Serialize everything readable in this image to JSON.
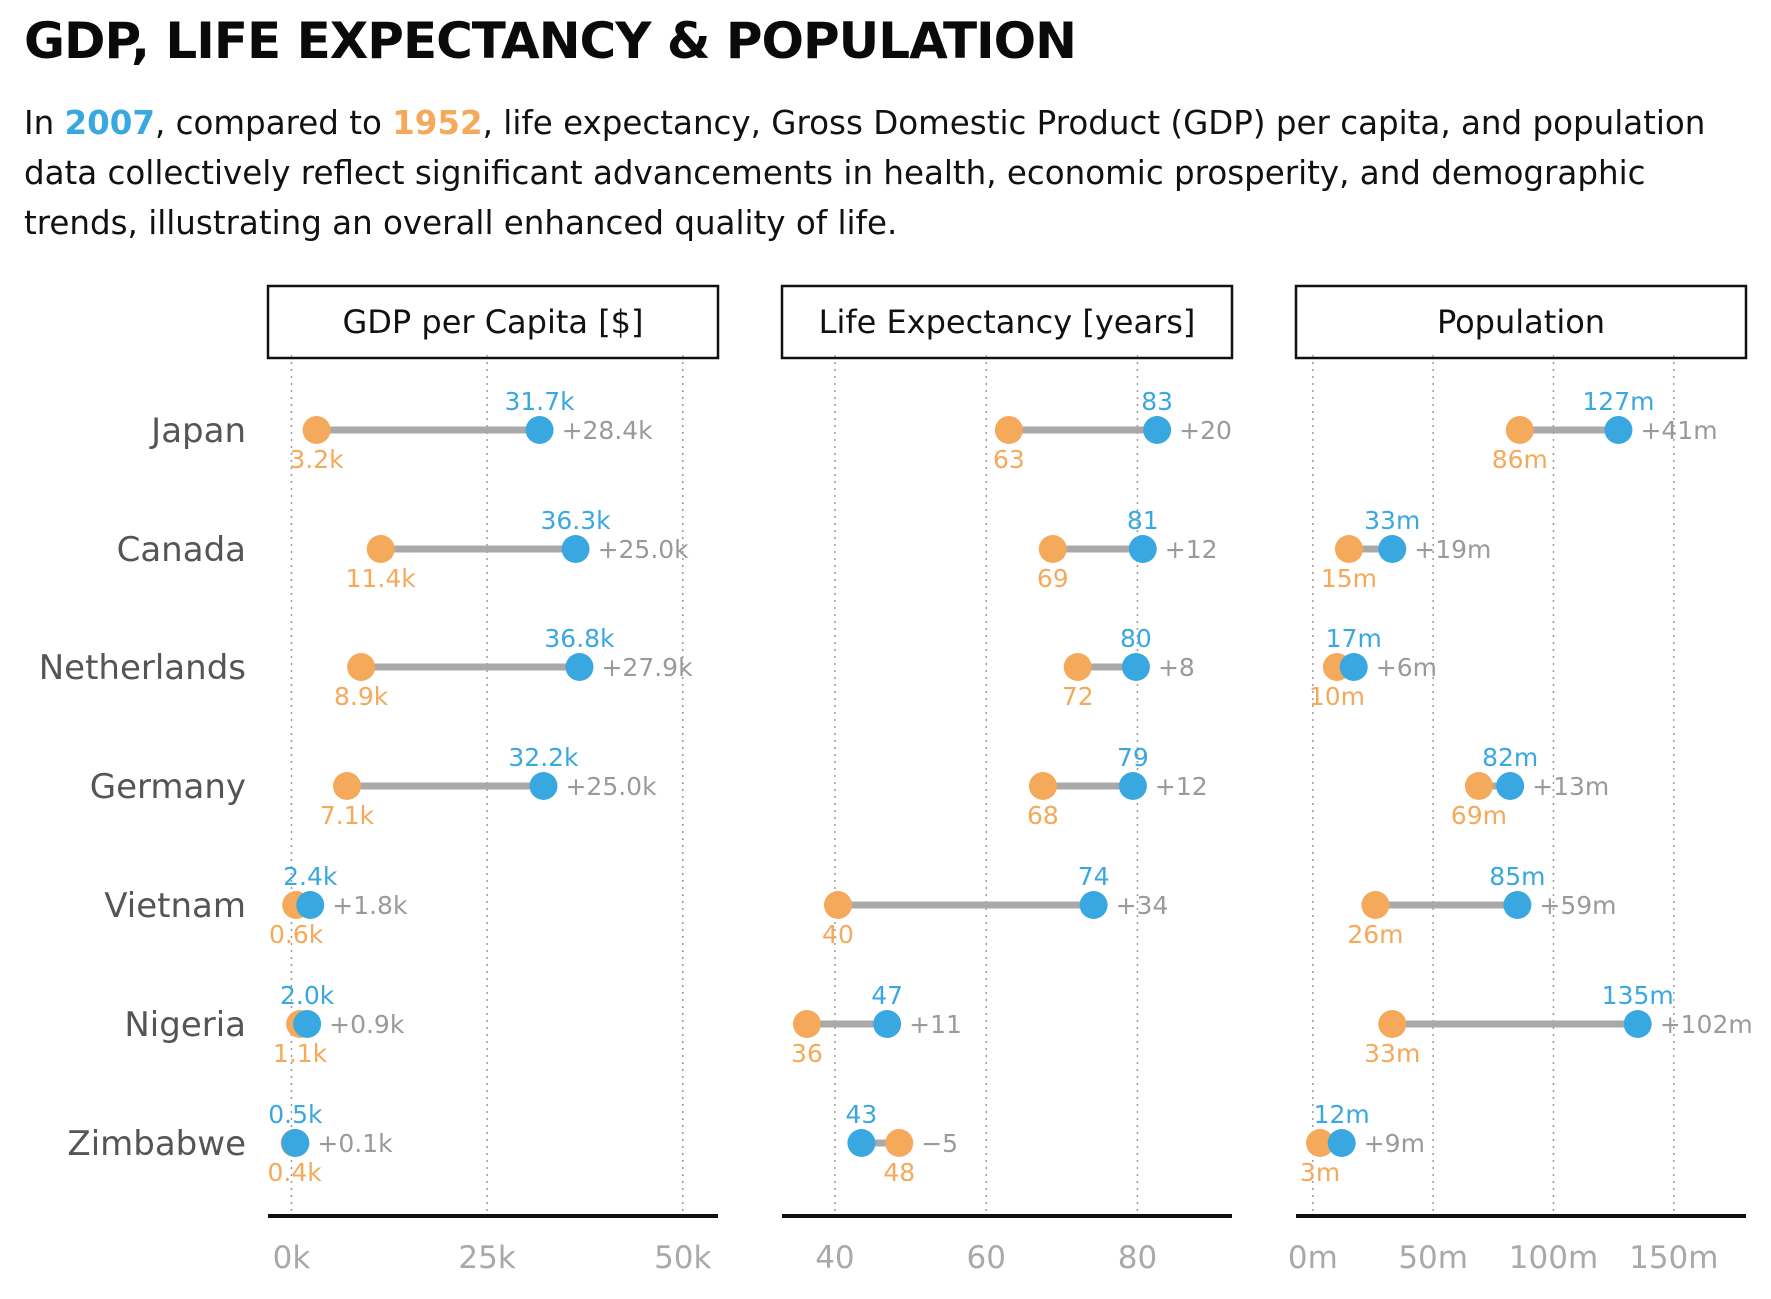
{
  "title": "GDP, LIFE EXPECTANCY & POPULATION",
  "subtitle": {
    "prefix": "In ",
    "year_new": "2007",
    "middle": ", compared to ",
    "year_old": "1952",
    "suffix": ", life expectancy, Gross Domestic Product (GDP) per capita, and population data collectively reflect significant advancements in health, economic prosperity, and demographic trends, illustrating an overall enhanced quality of life."
  },
  "colors": {
    "year_new": "#3aa8e0",
    "year_old": "#f5a95a",
    "connector": "#a9a9a9",
    "diff": "#9a9a9a",
    "country": "#555555",
    "tick": "#a9a9a9"
  },
  "chart_data": [
    {
      "type": "dumbbell",
      "title": "GDP per Capita [$]",
      "xlim": [
        -3000,
        54500
      ],
      "ticks": [
        0,
        25000,
        50000
      ],
      "tick_labels": [
        "0k",
        "25k",
        "50k"
      ],
      "categories": [
        "Japan",
        "Canada",
        "Netherlands",
        "Germany",
        "Vietnam",
        "Nigeria",
        "Zimbabwe"
      ],
      "series": [
        {
          "name": "1952",
          "values": [
            3200,
            11400,
            8900,
            7100,
            600,
            1100,
            400
          ],
          "labels": [
            "3.2k",
            "11.4k",
            "8.9k",
            "7.1k",
            "0.6k",
            "1.1k",
            "0.4k"
          ]
        },
        {
          "name": "2007",
          "values": [
            31700,
            36300,
            36800,
            32200,
            2400,
            2000,
            500
          ],
          "labels": [
            "31.7k",
            "36.3k",
            "36.8k",
            "32.2k",
            "2.4k",
            "2.0k",
            "0.5k"
          ]
        }
      ],
      "differences": [
        "+28.4k",
        "+25.0k",
        "+27.9k",
        "+25.0k",
        "+1.8k",
        "+0.9k",
        "+0.1k"
      ]
    },
    {
      "type": "dumbbell",
      "title": "Life Expectancy [years]",
      "xlim": [
        33,
        92.5
      ],
      "ticks": [
        40,
        60,
        80
      ],
      "tick_labels": [
        "40",
        "60",
        "80"
      ],
      "categories": [
        "Japan",
        "Canada",
        "Netherlands",
        "Germany",
        "Vietnam",
        "Nigeria",
        "Zimbabwe"
      ],
      "series": [
        {
          "name": "1952",
          "values": [
            63.0,
            68.8,
            72.1,
            67.5,
            40.4,
            36.3,
            48.5
          ],
          "labels": [
            "63",
            "69",
            "72",
            "68",
            "40",
            "36",
            "48"
          ]
        },
        {
          "name": "2007",
          "values": [
            82.6,
            80.7,
            79.8,
            79.4,
            74.2,
            46.9,
            43.5
          ],
          "labels": [
            "83",
            "81",
            "80",
            "79",
            "74",
            "47",
            "43"
          ]
        }
      ],
      "differences": [
        "+20",
        "+12",
        "+8",
        "+12",
        "+34",
        "+11",
        "−5"
      ]
    },
    {
      "type": "dumbbell",
      "title": "Population",
      "xlim": [
        -7,
        180
      ],
      "ticks": [
        0,
        50,
        100,
        150
      ],
      "tick_labels": [
        "0m",
        "50m",
        "100m",
        "150m"
      ],
      "categories": [
        "Japan",
        "Canada",
        "Netherlands",
        "Germany",
        "Vietnam",
        "Nigeria",
        "Zimbabwe"
      ],
      "series": [
        {
          "name": "1952",
          "values": [
            86,
            15,
            10,
            69,
            26,
            33,
            3
          ],
          "labels": [
            "86m",
            "15m",
            "10m",
            "69m",
            "26m",
            "33m",
            "3m"
          ]
        },
        {
          "name": "2007",
          "values": [
            127,
            33,
            17,
            82,
            85,
            135,
            12
          ],
          "labels": [
            "127m",
            "33m",
            "17m",
            "82m",
            "85m",
            "135m",
            "12m"
          ]
        }
      ],
      "differences": [
        "+41m",
        "+19m",
        "+6m",
        "+13m",
        "+59m",
        "+102m",
        "+9m"
      ]
    }
  ]
}
